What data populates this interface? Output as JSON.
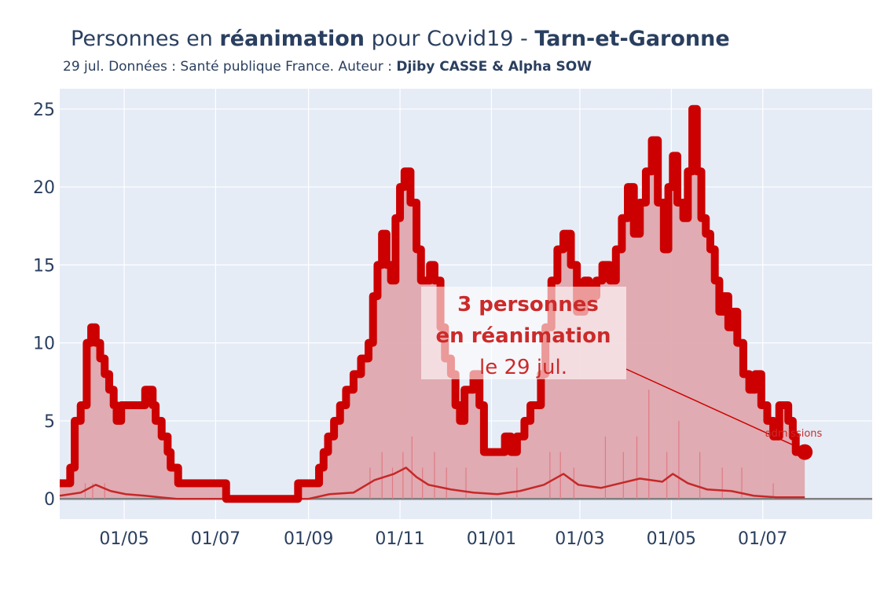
{
  "title": {
    "prefix": "Personnes en ",
    "bold_word": "réanimation",
    "middle": " pour Covid19 - ",
    "region": "Tarn-et-Garonne"
  },
  "subtitle": {
    "text": "29 jul. Données : Santé publique France. Auteur : ",
    "authors": "Djiby CASSE & Alpha SOW"
  },
  "annotation": {
    "line1": "3 personnes",
    "line2": "en réanimation",
    "line3": "le 29 jul."
  },
  "admissions_label": "admissions",
  "colors": {
    "main": "#cc0000",
    "fill": "#dfa8ae",
    "bars": "#e07a84",
    "plot_bg": "#e5ecf6",
    "text": "#2a3f5f"
  },
  "chart_data": {
    "type": "line",
    "x_start": "2020-03-19",
    "x_end": "2021-07-29",
    "xlim": [
      "2020-03-19",
      "2021-09-12"
    ],
    "ylim": [
      -1.3,
      26.3
    ],
    "y_ticks": [
      0,
      5,
      10,
      15,
      20,
      25
    ],
    "x_ticks": [
      {
        "date": "2020-05-01",
        "label": "01/05"
      },
      {
        "date": "2020-07-01",
        "label": "01/07"
      },
      {
        "date": "2020-09-01",
        "label": "01/09"
      },
      {
        "date": "2020-11-01",
        "label": "01/11"
      },
      {
        "date": "2021-01-01",
        "label": "01/01"
      },
      {
        "date": "2021-03-01",
        "label": "01/03"
      },
      {
        "date": "2021-05-01",
        "label": "01/05"
      },
      {
        "date": "2021-07-01",
        "label": "01/07"
      }
    ],
    "grid": true,
    "series": [
      {
        "name": "réanimation",
        "kind": "step",
        "points": [
          [
            "2020-03-19",
            1
          ],
          [
            "2020-03-26",
            2
          ],
          [
            "2020-03-29",
            5
          ],
          [
            "2020-04-02",
            6
          ],
          [
            "2020-04-06",
            10
          ],
          [
            "2020-04-09",
            11
          ],
          [
            "2020-04-12",
            10
          ],
          [
            "2020-04-15",
            9
          ],
          [
            "2020-04-18",
            8
          ],
          [
            "2020-04-21",
            7
          ],
          [
            "2020-04-24",
            6
          ],
          [
            "2020-04-26",
            5
          ],
          [
            "2020-04-29",
            6
          ],
          [
            "2020-05-15",
            7
          ],
          [
            "2020-05-20",
            6
          ],
          [
            "2020-05-22",
            5
          ],
          [
            "2020-05-26",
            4
          ],
          [
            "2020-05-30",
            3
          ],
          [
            "2020-06-01",
            2
          ],
          [
            "2020-06-06",
            1
          ],
          [
            "2020-07-08",
            0
          ],
          [
            "2020-08-25",
            1
          ],
          [
            "2020-09-08",
            2
          ],
          [
            "2020-09-11",
            3
          ],
          [
            "2020-09-14",
            4
          ],
          [
            "2020-09-18",
            5
          ],
          [
            "2020-09-22",
            6
          ],
          [
            "2020-09-26",
            7
          ],
          [
            "2020-10-01",
            8
          ],
          [
            "2020-10-06",
            9
          ],
          [
            "2020-10-11",
            10
          ],
          [
            "2020-10-14",
            13
          ],
          [
            "2020-10-17",
            15
          ],
          [
            "2020-10-20",
            17
          ],
          [
            "2020-10-23",
            15
          ],
          [
            "2020-10-26",
            14
          ],
          [
            "2020-10-29",
            18
          ],
          [
            "2020-11-01",
            20
          ],
          [
            "2020-11-04",
            21
          ],
          [
            "2020-11-08",
            19
          ],
          [
            "2020-11-12",
            16
          ],
          [
            "2020-11-15",
            14
          ],
          [
            "2020-11-21",
            15
          ],
          [
            "2020-11-24",
            14
          ],
          [
            "2020-11-28",
            11
          ],
          [
            "2020-12-01",
            9
          ],
          [
            "2020-12-05",
            8
          ],
          [
            "2020-12-08",
            6
          ],
          [
            "2020-12-11",
            5
          ],
          [
            "2020-12-14",
            7
          ],
          [
            "2020-12-20",
            8
          ],
          [
            "2020-12-24",
            6
          ],
          [
            "2020-12-27",
            3
          ],
          [
            "2021-01-10",
            4
          ],
          [
            "2021-01-14",
            3
          ],
          [
            "2021-01-18",
            4
          ],
          [
            "2021-01-23",
            5
          ],
          [
            "2021-01-27",
            6
          ],
          [
            "2021-02-03",
            8
          ],
          [
            "2021-02-06",
            11
          ],
          [
            "2021-02-10",
            14
          ],
          [
            "2021-02-14",
            16
          ],
          [
            "2021-02-18",
            17
          ],
          [
            "2021-02-23",
            15
          ],
          [
            "2021-02-27",
            12
          ],
          [
            "2021-03-04",
            14
          ],
          [
            "2021-03-07",
            13
          ],
          [
            "2021-03-12",
            14
          ],
          [
            "2021-03-16",
            15
          ],
          [
            "2021-03-21",
            14
          ],
          [
            "2021-03-25",
            16
          ],
          [
            "2021-03-29",
            18
          ],
          [
            "2021-04-02",
            20
          ],
          [
            "2021-04-06",
            17
          ],
          [
            "2021-04-10",
            19
          ],
          [
            "2021-04-14",
            21
          ],
          [
            "2021-04-18",
            23
          ],
          [
            "2021-04-22",
            19
          ],
          [
            "2021-04-26",
            16
          ],
          [
            "2021-04-29",
            20
          ],
          [
            "2021-05-02",
            22
          ],
          [
            "2021-05-05",
            19
          ],
          [
            "2021-05-09",
            18
          ],
          [
            "2021-05-12",
            21
          ],
          [
            "2021-05-15",
            25
          ],
          [
            "2021-05-18",
            21
          ],
          [
            "2021-05-21",
            18
          ],
          [
            "2021-05-24",
            17
          ],
          [
            "2021-05-27",
            16
          ],
          [
            "2021-05-30",
            14
          ],
          [
            "2021-06-02",
            12
          ],
          [
            "2021-06-05",
            13
          ],
          [
            "2021-06-08",
            11
          ],
          [
            "2021-06-11",
            12
          ],
          [
            "2021-06-14",
            10
          ],
          [
            "2021-06-18",
            8
          ],
          [
            "2021-06-22",
            7
          ],
          [
            "2021-06-26",
            8
          ],
          [
            "2021-06-30",
            6
          ],
          [
            "2021-07-04",
            5
          ],
          [
            "2021-07-08",
            4
          ],
          [
            "2021-07-12",
            6
          ],
          [
            "2021-07-18",
            5
          ],
          [
            "2021-07-21",
            4
          ],
          [
            "2021-07-23",
            3
          ],
          [
            "2021-07-29",
            3
          ]
        ]
      },
      {
        "name": "admissions",
        "kind": "line",
        "points": [
          [
            "2020-03-19",
            0.2
          ],
          [
            "2020-04-02",
            0.4
          ],
          [
            "2020-04-12",
            0.9
          ],
          [
            "2020-04-22",
            0.5
          ],
          [
            "2020-05-02",
            0.3
          ],
          [
            "2020-05-15",
            0.2
          ],
          [
            "2020-05-25",
            0.1
          ],
          [
            "2020-06-05",
            0
          ],
          [
            "2020-09-01",
            0
          ],
          [
            "2020-09-15",
            0.3
          ],
          [
            "2020-10-01",
            0.4
          ],
          [
            "2020-10-15",
            1.2
          ],
          [
            "2020-10-28",
            1.6
          ],
          [
            "2020-11-05",
            2.0
          ],
          [
            "2020-11-12",
            1.4
          ],
          [
            "2020-11-20",
            0.9
          ],
          [
            "2020-12-05",
            0.6
          ],
          [
            "2020-12-20",
            0.4
          ],
          [
            "2021-01-05",
            0.3
          ],
          [
            "2021-01-20",
            0.5
          ],
          [
            "2021-02-05",
            0.9
          ],
          [
            "2021-02-18",
            1.6
          ],
          [
            "2021-02-28",
            0.9
          ],
          [
            "2021-03-15",
            0.7
          ],
          [
            "2021-03-28",
            1.0
          ],
          [
            "2021-04-10",
            1.3
          ],
          [
            "2021-04-25",
            1.1
          ],
          [
            "2021-05-02",
            1.6
          ],
          [
            "2021-05-12",
            1.0
          ],
          [
            "2021-05-25",
            0.6
          ],
          [
            "2021-06-10",
            0.5
          ],
          [
            "2021-06-25",
            0.2
          ],
          [
            "2021-07-10",
            0.1
          ],
          [
            "2021-07-29",
            0.1
          ]
        ]
      }
    ],
    "daily_admission_bars": {
      "note_free": true,
      "points": [
        [
          "2020-04-05",
          1
        ],
        [
          "2020-04-10",
          1
        ],
        [
          "2020-04-18",
          1
        ],
        [
          "2020-10-12",
          2
        ],
        [
          "2020-10-20",
          3
        ],
        [
          "2020-10-27",
          2
        ],
        [
          "2020-11-03",
          3
        ],
        [
          "2020-11-09",
          4
        ],
        [
          "2020-11-16",
          2
        ],
        [
          "2020-11-24",
          3
        ],
        [
          "2020-12-02",
          2
        ],
        [
          "2020-12-15",
          2
        ],
        [
          "2021-01-18",
          2
        ],
        [
          "2021-02-09",
          3
        ],
        [
          "2021-02-16",
          3
        ],
        [
          "2021-02-25",
          2
        ],
        [
          "2021-03-18",
          4
        ],
        [
          "2021-03-30",
          3
        ],
        [
          "2021-04-08",
          4
        ],
        [
          "2021-04-16",
          7
        ],
        [
          "2021-04-28",
          3
        ],
        [
          "2021-05-06",
          5
        ],
        [
          "2021-05-20",
          3
        ],
        [
          "2021-06-04",
          2
        ],
        [
          "2021-06-17",
          2
        ],
        [
          "2021-07-08",
          1
        ]
      ]
    }
  }
}
